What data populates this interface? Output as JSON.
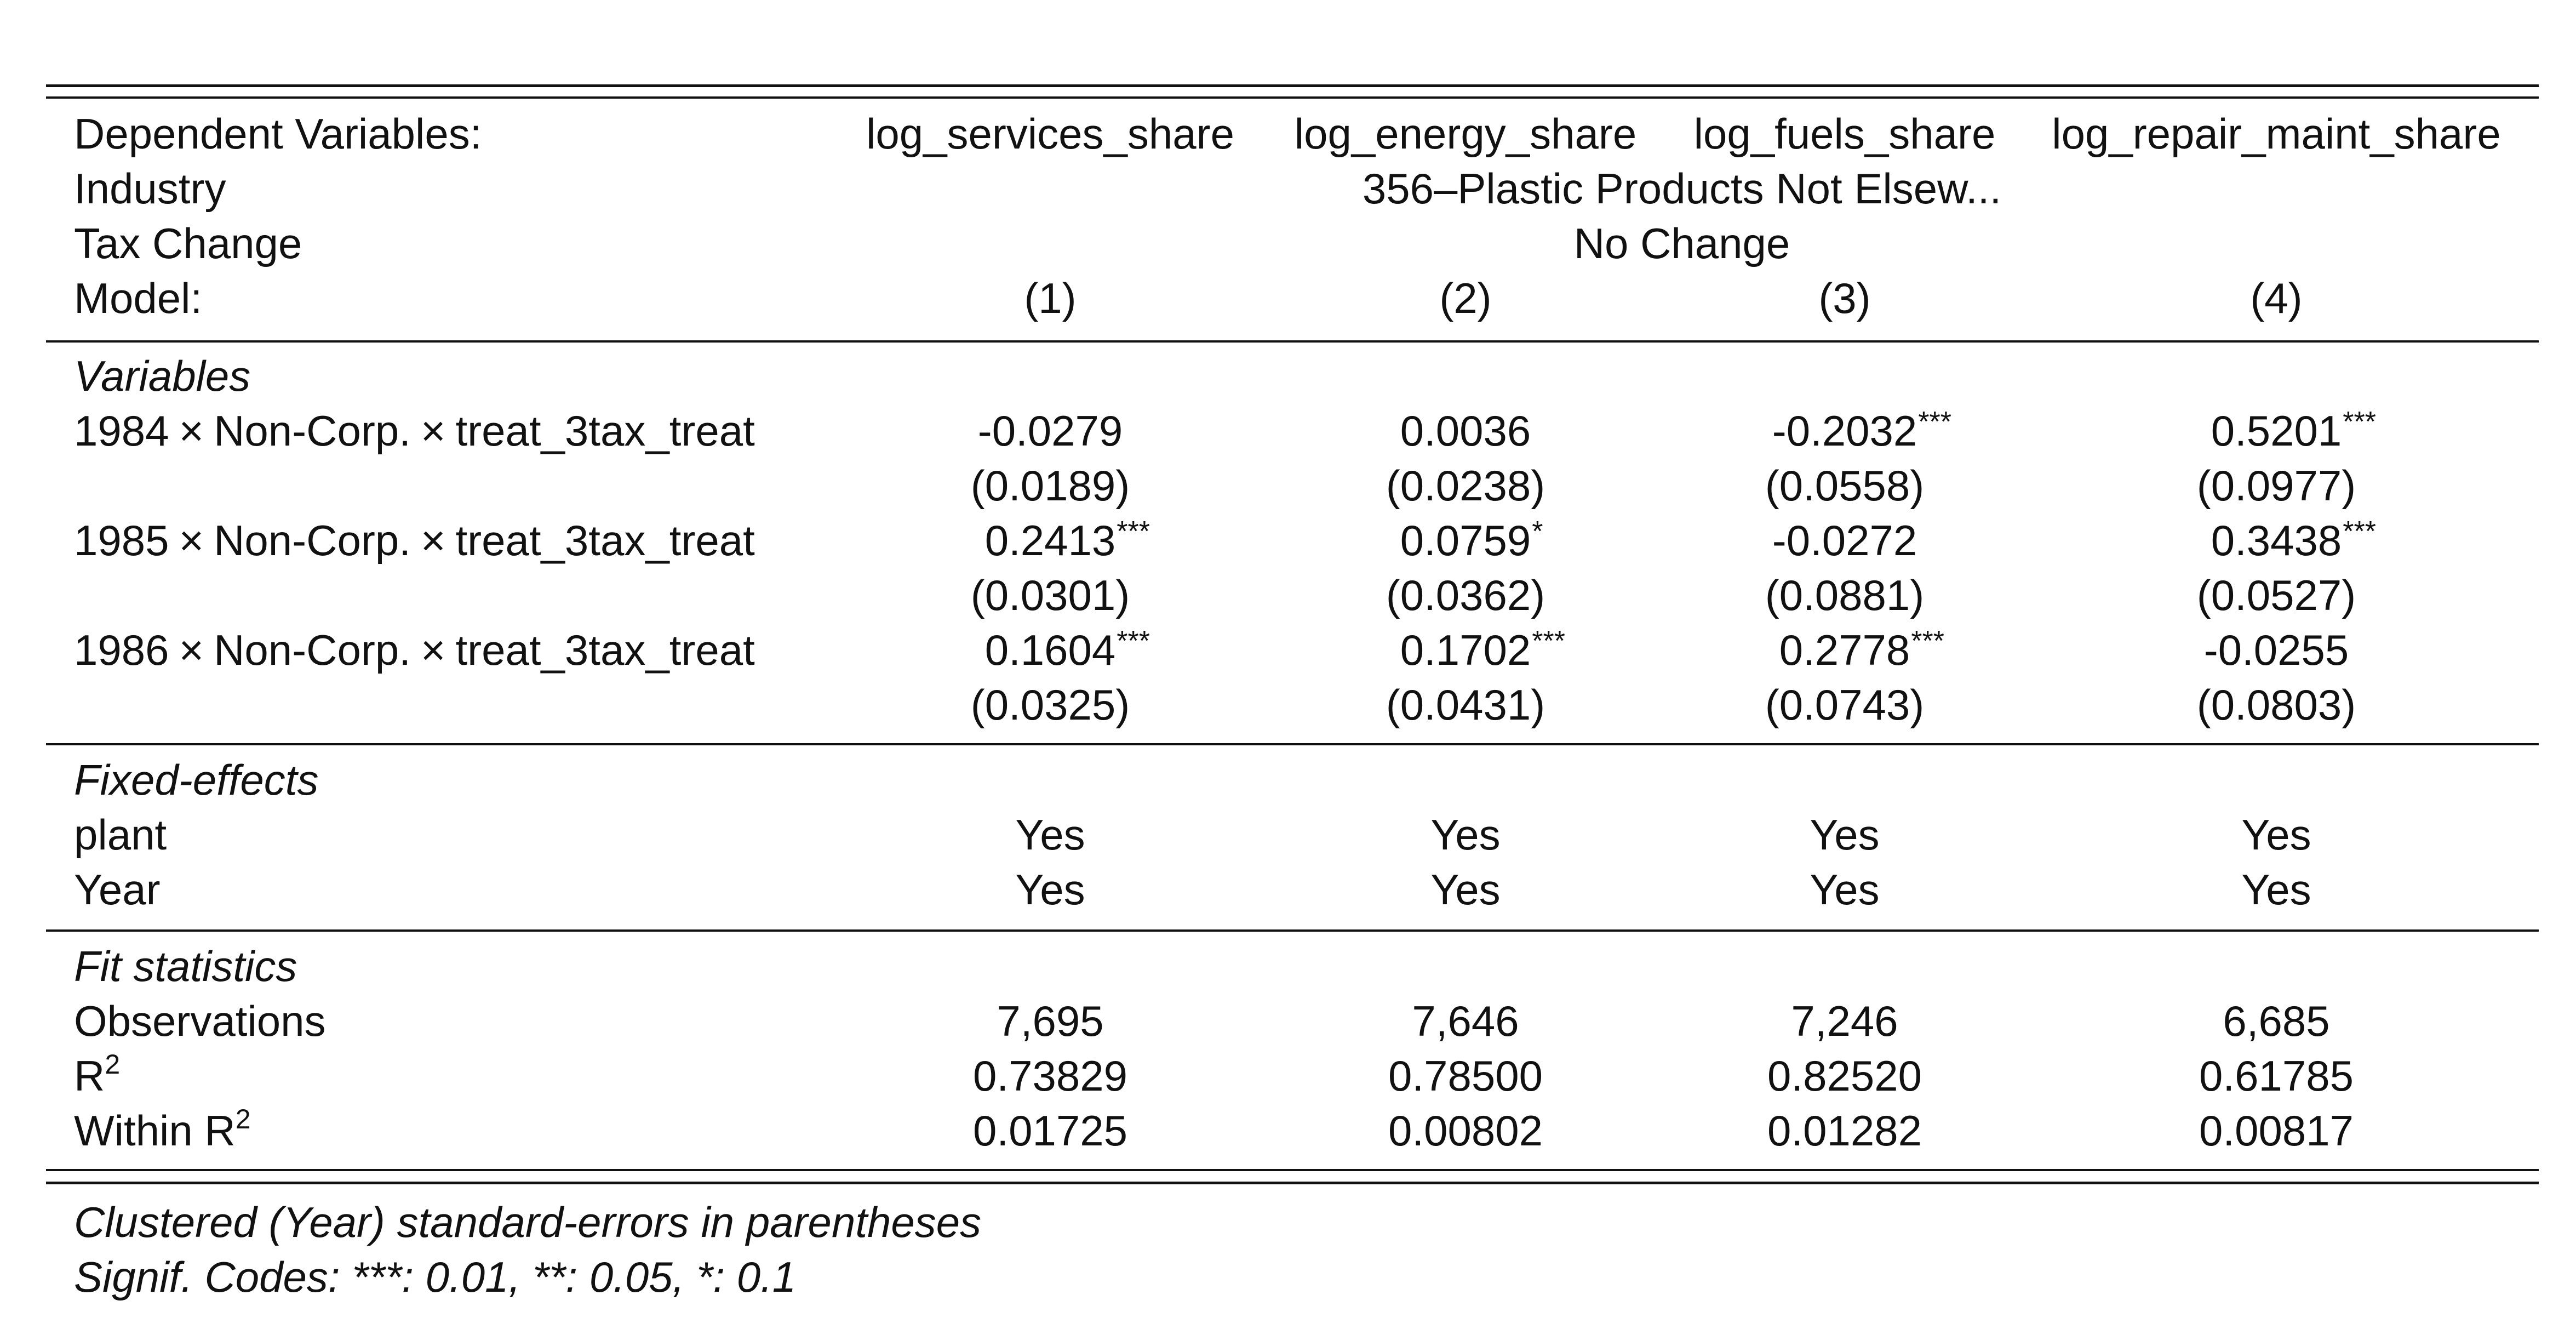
{
  "header": {
    "dep_label": "Dependent Variables:",
    "dep_vars": [
      "log_services_share",
      "log_energy_share",
      "log_fuels_share",
      "log_repair_maint_share"
    ],
    "industry_label": "Industry",
    "industry_value": "356–Plastic Products Not Elsew...",
    "tax_label": "Tax Change",
    "tax_value": "No Change",
    "model_label": "Model:",
    "models": [
      "(1)",
      "(2)",
      "(3)",
      "(4)"
    ]
  },
  "variables": {
    "section_title": "Variables",
    "rows": [
      {
        "year": "1984",
        "mid": "Non-Corp.",
        "tail": "treat_3tax_treat",
        "coefs": [
          "-0.0279",
          "0.0036",
          "-0.2032",
          "0.5201"
        ],
        "stars": [
          "",
          "",
          "***",
          "***"
        ],
        "ses": [
          "(0.0189)",
          "(0.0238)",
          "(0.0558)",
          "(0.0977)"
        ]
      },
      {
        "year": "1985",
        "mid": "Non-Corp.",
        "tail": "treat_3tax_treat",
        "coefs": [
          "0.2413",
          "0.0759",
          "-0.0272",
          "0.3438"
        ],
        "stars": [
          "***",
          "*",
          "",
          "***"
        ],
        "ses": [
          "(0.0301)",
          "(0.0362)",
          "(0.0881)",
          "(0.0527)"
        ]
      },
      {
        "year": "1986",
        "mid": "Non-Corp.",
        "tail": "treat_3tax_treat",
        "coefs": [
          "0.1604",
          "0.1702",
          "0.2778",
          "-0.0255"
        ],
        "stars": [
          "***",
          "***",
          "***",
          ""
        ],
        "ses": [
          "(0.0325)",
          "(0.0431)",
          "(0.0743)",
          "(0.0803)"
        ]
      }
    ],
    "times_symbol": "×"
  },
  "fixed_effects": {
    "section_title": "Fixed-effects",
    "rows": [
      {
        "label": "plant",
        "values": [
          "Yes",
          "Yes",
          "Yes",
          "Yes"
        ]
      },
      {
        "label": "Year",
        "values": [
          "Yes",
          "Yes",
          "Yes",
          "Yes"
        ]
      }
    ]
  },
  "fit": {
    "section_title": "Fit statistics",
    "obs_label": "Observations",
    "obs": [
      "7,695",
      "7,646",
      "7,246",
      "6,685"
    ],
    "r2_label": "R",
    "r2_sup": "2",
    "r2": [
      "0.73829",
      "0.78500",
      "0.82520",
      "0.61785"
    ],
    "within_label": "Within R",
    "within_sup": "2",
    "within_r2": [
      "0.01725",
      "0.00802",
      "0.01282",
      "0.00817"
    ]
  },
  "notes": {
    "line1": "Clustered (Year) standard-errors in parentheses",
    "line2": "Signif. Codes: ***: 0.01, **: 0.05, *: 0.1"
  }
}
